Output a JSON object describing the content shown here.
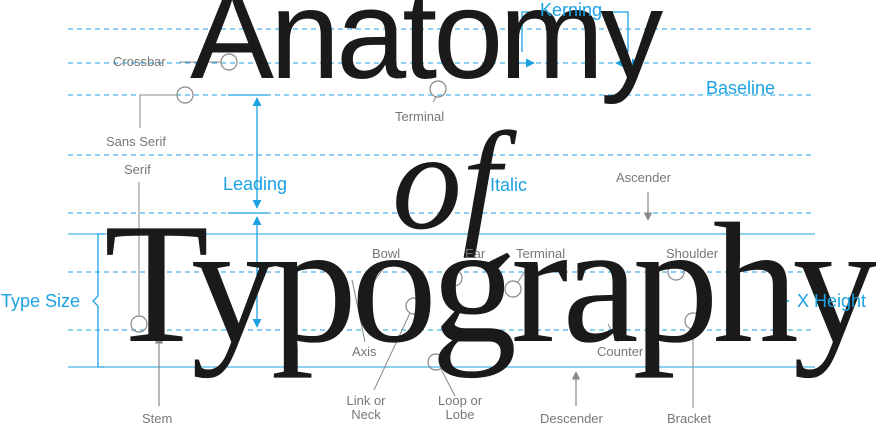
{
  "colors": {
    "accent": "#1ba1e2",
    "ink": "#1a1a1a",
    "label": "#777777"
  },
  "title": {
    "line1": "Anatomy",
    "line2": "of",
    "line3": "Typography"
  },
  "terms": {
    "kerning": "Kerning",
    "baseline": "Baseline",
    "leading": "Leading",
    "italic": "Italic",
    "type_size": "Type Size",
    "x_height": "X Height",
    "crossbar": "Crossbar",
    "sans_serif": "Sans Serif",
    "serif": "Serif",
    "terminal_top": "Terminal",
    "ascender": "Ascender",
    "bowl": "Bowl",
    "ear": "Ear",
    "terminal_bottom": "Terminal",
    "shoulder": "Shoulder",
    "axis": "Axis",
    "counter": "Counter",
    "stem": "Stem",
    "link_neck": [
      "Link or",
      "Neck"
    ],
    "loop_lobe": [
      "Loop or",
      "Lobe"
    ],
    "descender": "Descender",
    "bracket": "Bracket"
  }
}
